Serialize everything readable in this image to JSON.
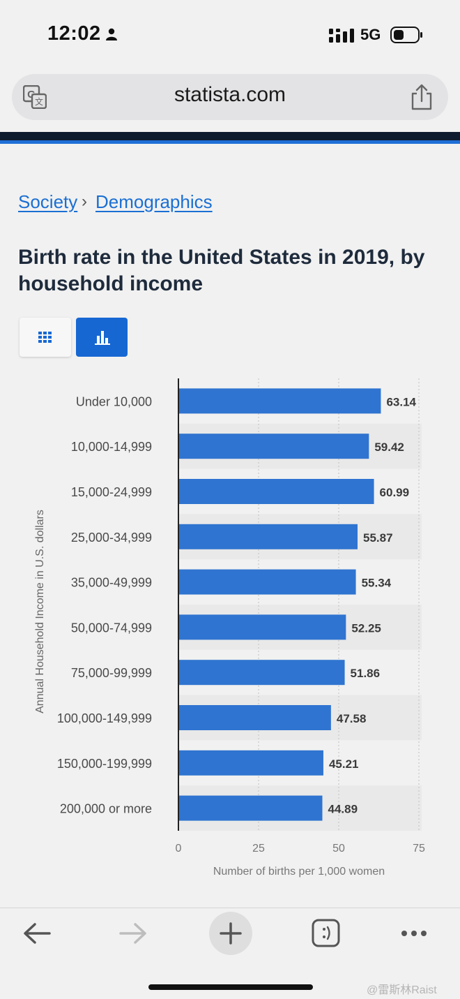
{
  "status_bar": {
    "time": "12:02",
    "network": "5G"
  },
  "browser": {
    "url": "statista.com"
  },
  "breadcrumb": {
    "items": [
      "Society",
      "Demographics"
    ],
    "separator": "›"
  },
  "page": {
    "title": "Birth rate in the United States in 2019, by household income"
  },
  "view_toggle": {
    "active": "chart"
  },
  "chart_data": {
    "type": "bar",
    "orientation": "horizontal",
    "categories": [
      "Under 10,000",
      "10,000-14,999",
      "15,000-24,999",
      "25,000-34,999",
      "35,000-49,999",
      "50,000-74,999",
      "75,000-99,999",
      "100,000-149,999",
      "150,000-199,999",
      "200,000 or more"
    ],
    "values": [
      63.14,
      59.42,
      60.99,
      55.87,
      55.34,
      52.25,
      51.86,
      47.58,
      45.21,
      44.89
    ],
    "value_labels": [
      "63.14",
      "59.42",
      "60.99",
      "55.87",
      "55.34",
      "52.25",
      "51.86",
      "47.58",
      "45.21",
      "44.89"
    ],
    "xlabel": "Number of births per 1,000 women",
    "ylabel": "Annual Household Income in U.S. dollars",
    "xlim": [
      0,
      75
    ],
    "xticks": [
      "0",
      "25",
      "50",
      "75"
    ],
    "grid": true,
    "bar_color": "#2f74d0"
  },
  "watermark": "@雷斯林Raist",
  "colors": {
    "accent": "#1767d2",
    "link": "#1a6fd3",
    "header_dark": "#0e1b2e"
  }
}
